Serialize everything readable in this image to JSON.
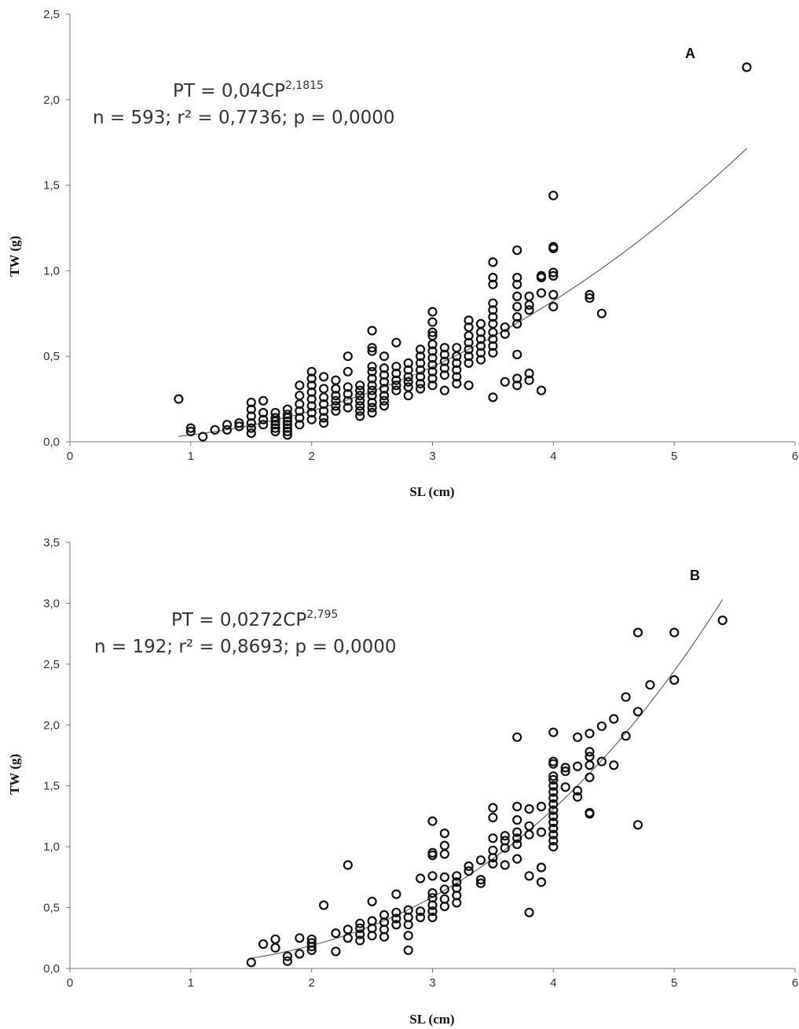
{
  "chart_data": [
    {
      "type": "scatter",
      "panel": "A",
      "xlabel": "SL (cm)",
      "ylabel": "TW (g)",
      "xlim": [
        0,
        6
      ],
      "ylim": [
        0,
        2.5
      ],
      "x_ticks": [
        "0",
        "1",
        "2",
        "3",
        "4",
        "5",
        "6"
      ],
      "y_ticks": [
        "0,0",
        "0,5",
        "1,0",
        "1,5",
        "2,0",
        "2,5"
      ],
      "equation": {
        "base": "PT = 0,04CP",
        "exponent": "2,1815"
      },
      "stats": "n = 593; r² = 0,7736; p = 0,0000",
      "fit": {
        "a": 0.04,
        "b": 2.1815,
        "x_from": 0.9,
        "x_to": 5.6
      },
      "points": [
        [
          0.9,
          0.25
        ],
        [
          1.0,
          0.08
        ],
        [
          1.0,
          0.06
        ],
        [
          1.1,
          0.03
        ],
        [
          1.2,
          0.07
        ],
        [
          1.3,
          0.1
        ],
        [
          1.3,
          0.07
        ],
        [
          1.4,
          0.11
        ],
        [
          1.4,
          0.09
        ],
        [
          1.5,
          0.23
        ],
        [
          1.5,
          0.19
        ],
        [
          1.5,
          0.15
        ],
        [
          1.5,
          0.11
        ],
        [
          1.5,
          0.08
        ],
        [
          1.5,
          0.05
        ],
        [
          1.6,
          0.24
        ],
        [
          1.6,
          0.17
        ],
        [
          1.6,
          0.13
        ],
        [
          1.6,
          0.1
        ],
        [
          1.7,
          0.17
        ],
        [
          1.7,
          0.14
        ],
        [
          1.7,
          0.12
        ],
        [
          1.7,
          0.1
        ],
        [
          1.7,
          0.08
        ],
        [
          1.7,
          0.06
        ],
        [
          1.8,
          0.19
        ],
        [
          1.8,
          0.16
        ],
        [
          1.8,
          0.14
        ],
        [
          1.8,
          0.12
        ],
        [
          1.8,
          0.1
        ],
        [
          1.8,
          0.08
        ],
        [
          1.8,
          0.06
        ],
        [
          1.8,
          0.04
        ],
        [
          1.9,
          0.33
        ],
        [
          1.9,
          0.27
        ],
        [
          1.9,
          0.22
        ],
        [
          1.9,
          0.18
        ],
        [
          1.9,
          0.14
        ],
        [
          1.9,
          0.1
        ],
        [
          2.0,
          0.41
        ],
        [
          2.0,
          0.37
        ],
        [
          2.0,
          0.33
        ],
        [
          2.0,
          0.29
        ],
        [
          2.0,
          0.25
        ],
        [
          2.0,
          0.21
        ],
        [
          2.0,
          0.17
        ],
        [
          2.0,
          0.13
        ],
        [
          2.1,
          0.38
        ],
        [
          2.1,
          0.31
        ],
        [
          2.1,
          0.26
        ],
        [
          2.1,
          0.22
        ],
        [
          2.1,
          0.18
        ],
        [
          2.1,
          0.14
        ],
        [
          2.1,
          0.11
        ],
        [
          2.2,
          0.36
        ],
        [
          2.2,
          0.31
        ],
        [
          2.2,
          0.27
        ],
        [
          2.2,
          0.24
        ],
        [
          2.2,
          0.21
        ],
        [
          2.2,
          0.18
        ],
        [
          2.3,
          0.5
        ],
        [
          2.3,
          0.41
        ],
        [
          2.3,
          0.32
        ],
        [
          2.3,
          0.28
        ],
        [
          2.3,
          0.24
        ],
        [
          2.3,
          0.2
        ],
        [
          2.4,
          0.33
        ],
        [
          2.4,
          0.3
        ],
        [
          2.4,
          0.27
        ],
        [
          2.4,
          0.24
        ],
        [
          2.4,
          0.21
        ],
        [
          2.4,
          0.18
        ],
        [
          2.4,
          0.15
        ],
        [
          2.5,
          0.65
        ],
        [
          2.5,
          0.55
        ],
        [
          2.5,
          0.53
        ],
        [
          2.5,
          0.44
        ],
        [
          2.5,
          0.41
        ],
        [
          2.5,
          0.37
        ],
        [
          2.5,
          0.33
        ],
        [
          2.5,
          0.3
        ],
        [
          2.5,
          0.27
        ],
        [
          2.5,
          0.23
        ],
        [
          2.5,
          0.2
        ],
        [
          2.5,
          0.17
        ],
        [
          2.6,
          0.5
        ],
        [
          2.6,
          0.43
        ],
        [
          2.6,
          0.39
        ],
        [
          2.6,
          0.35
        ],
        [
          2.6,
          0.31
        ],
        [
          2.6,
          0.27
        ],
        [
          2.6,
          0.24
        ],
        [
          2.6,
          0.21
        ],
        [
          2.7,
          0.58
        ],
        [
          2.7,
          0.44
        ],
        [
          2.7,
          0.4
        ],
        [
          2.7,
          0.36
        ],
        [
          2.7,
          0.33
        ],
        [
          2.7,
          0.3
        ],
        [
          2.8,
          0.46
        ],
        [
          2.8,
          0.42
        ],
        [
          2.8,
          0.38
        ],
        [
          2.8,
          0.35
        ],
        [
          2.8,
          0.32
        ],
        [
          2.8,
          0.27
        ],
        [
          2.9,
          0.54
        ],
        [
          2.9,
          0.5
        ],
        [
          2.9,
          0.46
        ],
        [
          2.9,
          0.42
        ],
        [
          2.9,
          0.38
        ],
        [
          2.9,
          0.34
        ],
        [
          2.9,
          0.31
        ],
        [
          3.0,
          0.76
        ],
        [
          3.0,
          0.7
        ],
        [
          3.0,
          0.64
        ],
        [
          3.0,
          0.62
        ],
        [
          3.0,
          0.57
        ],
        [
          3.0,
          0.53
        ],
        [
          3.0,
          0.49
        ],
        [
          3.0,
          0.45
        ],
        [
          3.0,
          0.41
        ],
        [
          3.0,
          0.37
        ],
        [
          3.0,
          0.33
        ],
        [
          3.1,
          0.55
        ],
        [
          3.1,
          0.51
        ],
        [
          3.1,
          0.47
        ],
        [
          3.1,
          0.43
        ],
        [
          3.1,
          0.39
        ],
        [
          3.1,
          0.3
        ],
        [
          3.2,
          0.55
        ],
        [
          3.2,
          0.5
        ],
        [
          3.2,
          0.46
        ],
        [
          3.2,
          0.42
        ],
        [
          3.2,
          0.38
        ],
        [
          3.2,
          0.34
        ],
        [
          3.3,
          0.71
        ],
        [
          3.3,
          0.67
        ],
        [
          3.3,
          0.62
        ],
        [
          3.3,
          0.58
        ],
        [
          3.3,
          0.54
        ],
        [
          3.3,
          0.5
        ],
        [
          3.3,
          0.46
        ],
        [
          3.3,
          0.33
        ],
        [
          3.4,
          0.69
        ],
        [
          3.4,
          0.64
        ],
        [
          3.4,
          0.6
        ],
        [
          3.4,
          0.56
        ],
        [
          3.4,
          0.52
        ],
        [
          3.4,
          0.48
        ],
        [
          3.5,
          1.05
        ],
        [
          3.5,
          0.96
        ],
        [
          3.5,
          0.92
        ],
        [
          3.5,
          0.81
        ],
        [
          3.5,
          0.77
        ],
        [
          3.5,
          0.73
        ],
        [
          3.5,
          0.69
        ],
        [
          3.5,
          0.64
        ],
        [
          3.5,
          0.6
        ],
        [
          3.5,
          0.56
        ],
        [
          3.5,
          0.52
        ],
        [
          3.5,
          0.26
        ],
        [
          3.6,
          0.67
        ],
        [
          3.6,
          0.63
        ],
        [
          3.6,
          0.35
        ],
        [
          3.7,
          1.12
        ],
        [
          3.7,
          0.96
        ],
        [
          3.7,
          0.92
        ],
        [
          3.7,
          0.85
        ],
        [
          3.7,
          0.79
        ],
        [
          3.7,
          0.73
        ],
        [
          3.7,
          0.69
        ],
        [
          3.7,
          0.51
        ],
        [
          3.7,
          0.37
        ],
        [
          3.7,
          0.33
        ],
        [
          3.8,
          0.85
        ],
        [
          3.8,
          0.8
        ],
        [
          3.8,
          0.77
        ],
        [
          3.8,
          0.4
        ],
        [
          3.8,
          0.36
        ],
        [
          3.9,
          0.97
        ],
        [
          3.9,
          0.96
        ],
        [
          3.9,
          0.87
        ],
        [
          3.9,
          0.3
        ],
        [
          4.0,
          1.44
        ],
        [
          4.0,
          1.14
        ],
        [
          4.0,
          1.13
        ],
        [
          4.0,
          0.99
        ],
        [
          4.0,
          0.97
        ],
        [
          4.0,
          0.86
        ],
        [
          4.0,
          0.79
        ],
        [
          4.3,
          0.86
        ],
        [
          4.3,
          0.84
        ],
        [
          4.4,
          0.75
        ],
        [
          5.6,
          2.19
        ]
      ]
    },
    {
      "type": "scatter",
      "panel": "B",
      "xlabel": "SL (cm)",
      "ylabel": "TW (g)",
      "xlim": [
        0,
        6
      ],
      "ylim": [
        0,
        3.5
      ],
      "x_ticks": [
        "0",
        "1",
        "2",
        "3",
        "4",
        "5",
        "6"
      ],
      "y_ticks": [
        "0,0",
        "0,5",
        "1,0",
        "1,5",
        "2,0",
        "2,5",
        "3,0",
        "3,5"
      ],
      "equation": {
        "base": "PT = 0,0272CP",
        "exponent": "2,795"
      },
      "stats": "n = 192; r² = 0,8693; p = 0,0000",
      "fit": {
        "a": 0.0272,
        "b": 2.795,
        "x_from": 1.5,
        "x_to": 5.4
      },
      "points": [
        [
          1.5,
          0.05
        ],
        [
          1.6,
          0.2
        ],
        [
          1.7,
          0.24
        ],
        [
          1.7,
          0.17
        ],
        [
          1.8,
          0.1
        ],
        [
          1.8,
          0.06
        ],
        [
          1.9,
          0.25
        ],
        [
          1.9,
          0.12
        ],
        [
          2.0,
          0.24
        ],
        [
          2.0,
          0.21
        ],
        [
          2.0,
          0.18
        ],
        [
          2.0,
          0.15
        ],
        [
          2.1,
          0.52
        ],
        [
          2.2,
          0.29
        ],
        [
          2.2,
          0.14
        ],
        [
          2.3,
          0.85
        ],
        [
          2.3,
          0.32
        ],
        [
          2.3,
          0.25
        ],
        [
          2.4,
          0.37
        ],
        [
          2.4,
          0.33
        ],
        [
          2.4,
          0.28
        ],
        [
          2.4,
          0.23
        ],
        [
          2.5,
          0.55
        ],
        [
          2.5,
          0.39
        ],
        [
          2.5,
          0.33
        ],
        [
          2.5,
          0.27
        ],
        [
          2.6,
          0.44
        ],
        [
          2.6,
          0.38
        ],
        [
          2.6,
          0.32
        ],
        [
          2.6,
          0.26
        ],
        [
          2.7,
          0.61
        ],
        [
          2.7,
          0.46
        ],
        [
          2.7,
          0.41
        ],
        [
          2.7,
          0.36
        ],
        [
          2.8,
          0.48
        ],
        [
          2.8,
          0.42
        ],
        [
          2.8,
          0.36
        ],
        [
          2.8,
          0.27
        ],
        [
          2.8,
          0.15
        ],
        [
          2.9,
          0.74
        ],
        [
          2.9,
          0.47
        ],
        [
          2.9,
          0.42
        ],
        [
          3.0,
          1.21
        ],
        [
          3.0,
          0.95
        ],
        [
          3.0,
          0.93
        ],
        [
          3.0,
          0.76
        ],
        [
          3.0,
          0.62
        ],
        [
          3.0,
          0.58
        ],
        [
          3.0,
          0.52
        ],
        [
          3.0,
          0.47
        ],
        [
          3.0,
          0.42
        ],
        [
          3.1,
          1.11
        ],
        [
          3.1,
          1.01
        ],
        [
          3.1,
          0.94
        ],
        [
          3.1,
          0.75
        ],
        [
          3.1,
          0.65
        ],
        [
          3.1,
          0.57
        ],
        [
          3.1,
          0.51
        ],
        [
          3.2,
          0.76
        ],
        [
          3.2,
          0.71
        ],
        [
          3.2,
          0.66
        ],
        [
          3.2,
          0.6
        ],
        [
          3.2,
          0.54
        ],
        [
          3.3,
          0.84
        ],
        [
          3.3,
          0.8
        ],
        [
          3.4,
          0.89
        ],
        [
          3.4,
          0.73
        ],
        [
          3.4,
          0.7
        ],
        [
          3.5,
          1.32
        ],
        [
          3.5,
          1.24
        ],
        [
          3.5,
          1.07
        ],
        [
          3.5,
          0.97
        ],
        [
          3.5,
          0.91
        ],
        [
          3.5,
          0.86
        ],
        [
          3.6,
          1.09
        ],
        [
          3.6,
          1.05
        ],
        [
          3.6,
          0.99
        ],
        [
          3.6,
          0.85
        ],
        [
          3.7,
          1.9
        ],
        [
          3.7,
          1.33
        ],
        [
          3.7,
          1.22
        ],
        [
          3.7,
          1.12
        ],
        [
          3.7,
          1.07
        ],
        [
          3.7,
          1.02
        ],
        [
          3.7,
          0.9
        ],
        [
          3.8,
          1.31
        ],
        [
          3.8,
          1.17
        ],
        [
          3.8,
          1.1
        ],
        [
          3.8,
          0.76
        ],
        [
          3.8,
          0.46
        ],
        [
          3.9,
          1.33
        ],
        [
          3.9,
          1.12
        ],
        [
          3.9,
          0.83
        ],
        [
          3.9,
          0.71
        ],
        [
          4.0,
          1.94
        ],
        [
          4.0,
          1.7
        ],
        [
          4.0,
          1.68
        ],
        [
          4.0,
          1.58
        ],
        [
          4.0,
          1.55
        ],
        [
          4.0,
          1.5
        ],
        [
          4.0,
          1.45
        ],
        [
          4.0,
          1.4
        ],
        [
          4.0,
          1.35
        ],
        [
          4.0,
          1.3
        ],
        [
          4.0,
          1.25
        ],
        [
          4.0,
          1.2
        ],
        [
          4.0,
          1.15
        ],
        [
          4.0,
          1.1
        ],
        [
          4.0,
          1.05
        ],
        [
          4.0,
          1.0
        ],
        [
          4.1,
          1.65
        ],
        [
          4.1,
          1.62
        ],
        [
          4.1,
          1.49
        ],
        [
          4.2,
          1.9
        ],
        [
          4.2,
          1.66
        ],
        [
          4.2,
          1.46
        ],
        [
          4.2,
          1.41
        ],
        [
          4.3,
          1.93
        ],
        [
          4.3,
          1.78
        ],
        [
          4.3,
          1.74
        ],
        [
          4.3,
          1.67
        ],
        [
          4.3,
          1.57
        ],
        [
          4.3,
          1.28
        ],
        [
          4.3,
          1.27
        ],
        [
          4.4,
          1.99
        ],
        [
          4.4,
          1.7
        ],
        [
          4.5,
          2.05
        ],
        [
          4.5,
          1.67
        ],
        [
          4.6,
          2.23
        ],
        [
          4.6,
          1.91
        ],
        [
          4.7,
          2.76
        ],
        [
          4.7,
          2.11
        ],
        [
          4.7,
          1.18
        ],
        [
          4.8,
          2.33
        ],
        [
          5.0,
          2.76
        ],
        [
          5.0,
          2.37
        ],
        [
          5.4,
          2.86
        ]
      ]
    }
  ]
}
